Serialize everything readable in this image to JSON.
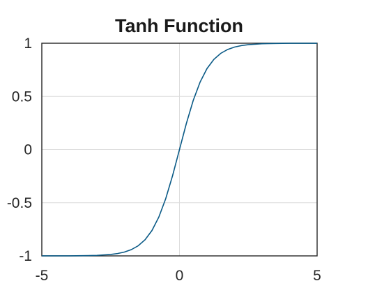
{
  "chart_data": {
    "type": "line",
    "title": "Tanh Function",
    "xlabel": "",
    "ylabel": "",
    "xlim": [
      -5,
      5
    ],
    "ylim": [
      -1,
      1
    ],
    "x_ticks": [
      -5,
      0,
      5
    ],
    "y_ticks": [
      1,
      0.5,
      0,
      -0.5,
      -1
    ],
    "x_tick_labels": [
      "-5",
      "0",
      "5"
    ],
    "y_tick_labels": [
      "1",
      "0.5",
      "0",
      "-0.5",
      "-1"
    ],
    "grid": true,
    "series": [
      {
        "color": "#0a5a86",
        "x": [
          -5,
          -4.5,
          -4,
          -3.5,
          -3,
          -2.5,
          -2.25,
          -2,
          -1.75,
          -1.5,
          -1.25,
          -1,
          -0.75,
          -0.5,
          -0.25,
          0,
          0.25,
          0.5,
          0.75,
          1,
          1.25,
          1.5,
          1.75,
          2,
          2.25,
          2.5,
          3,
          3.5,
          4,
          4.5,
          5
        ],
        "y": [
          -0.9999,
          -0.9998,
          -0.9993,
          -0.9982,
          -0.9951,
          -0.9866,
          -0.978,
          -0.964,
          -0.9414,
          -0.9051,
          -0.8483,
          -0.7616,
          -0.6351,
          -0.4621,
          -0.2449,
          0,
          0.2449,
          0.4621,
          0.6351,
          0.7616,
          0.8483,
          0.9051,
          0.9414,
          0.964,
          0.978,
          0.9866,
          0.9951,
          0.9982,
          0.9993,
          0.9998,
          0.9999
        ]
      }
    ]
  }
}
